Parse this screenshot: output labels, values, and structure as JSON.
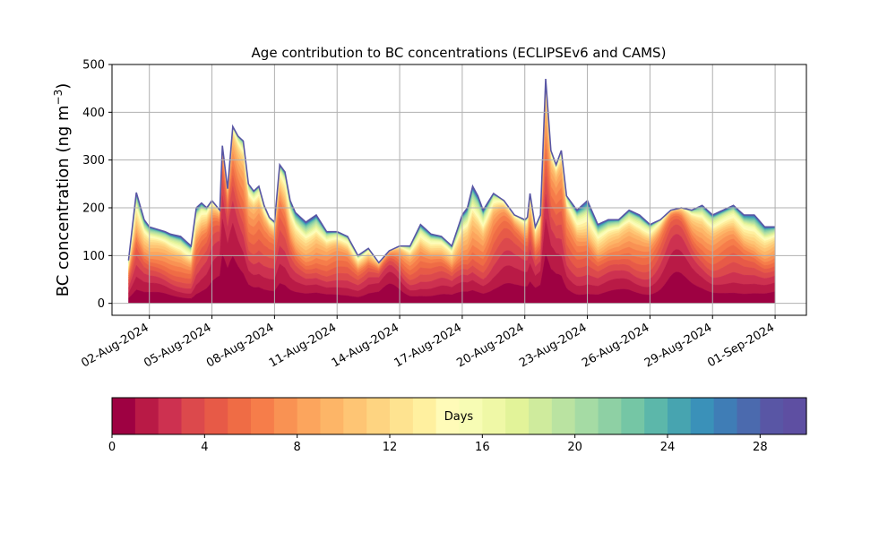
{
  "chart_data": {
    "type": "area",
    "stacked": true,
    "title": "Age contribution to BC concentrations (ECLIPSEv6 and CAMS)",
    "ylabel_main": "BC concentration (ng m",
    "ylabel_sup": "−3",
    "ylabel_end": ")",
    "ylim": [
      -25,
      500
    ],
    "yticks": [
      0,
      100,
      200,
      300,
      400,
      500
    ],
    "xlim": [
      "2024-07-31T05:00",
      "2024-09-02T12:00"
    ],
    "xticks": [
      "02-Aug-2024",
      "05-Aug-2024",
      "08-Aug-2024",
      "11-Aug-2024",
      "14-Aug-2024",
      "17-Aug-2024",
      "20-Aug-2024",
      "23-Aug-2024",
      "26-Aug-2024",
      "29-Aug-2024",
      "01-Sep-2024"
    ],
    "xtick_dates": [
      "2024-08-02",
      "2024-08-05",
      "2024-08-08",
      "2024-08-11",
      "2024-08-14",
      "2024-08-17",
      "2024-08-20",
      "2024-08-23",
      "2024-08-26",
      "2024-08-29",
      "2024-09-01"
    ],
    "grid": true,
    "series_name": "age (days)",
    "age_classes": 30,
    "total": {
      "x": [
        "2024-08-01",
        "2024-08-01T09:00",
        "2024-08-01T18:00",
        "2024-08-02",
        "2024-08-02T09:00",
        "2024-08-02T18:00",
        "2024-08-03",
        "2024-08-03T12:00",
        "2024-08-04",
        "2024-08-04T06:00",
        "2024-08-04T12:00",
        "2024-08-04T18:00",
        "2024-08-05",
        "2024-08-05T09:00",
        "2024-08-05T12:00",
        "2024-08-05T18:00",
        "2024-08-06",
        "2024-08-06T06:00",
        "2024-08-06T12:00",
        "2024-08-06T18:00",
        "2024-08-07",
        "2024-08-07T06:00",
        "2024-08-07T12:00",
        "2024-08-07T18:00",
        "2024-08-08",
        "2024-08-08T06:00",
        "2024-08-08T12:00",
        "2024-08-08T18:00",
        "2024-08-09",
        "2024-08-09T12:00",
        "2024-08-10",
        "2024-08-10T12:00",
        "2024-08-11",
        "2024-08-11T12:00",
        "2024-08-12",
        "2024-08-12T12:00",
        "2024-08-13",
        "2024-08-13T12:00",
        "2024-08-14",
        "2024-08-14T12:00",
        "2024-08-15",
        "2024-08-15T12:00",
        "2024-08-16",
        "2024-08-16T12:00",
        "2024-08-17",
        "2024-08-17T06:00",
        "2024-08-17T12:00",
        "2024-08-17T18:00",
        "2024-08-18",
        "2024-08-18T12:00",
        "2024-08-19",
        "2024-08-19T12:00",
        "2024-08-20",
        "2024-08-20T03:00",
        "2024-08-20T06:00",
        "2024-08-20T12:00",
        "2024-08-20T18:00",
        "2024-08-21",
        "2024-08-21T06:00",
        "2024-08-21T12:00",
        "2024-08-21T18:00",
        "2024-08-22",
        "2024-08-22T12:00",
        "2024-08-23",
        "2024-08-23T12:00",
        "2024-08-24",
        "2024-08-24T12:00",
        "2024-08-25",
        "2024-08-25T12:00",
        "2024-08-26",
        "2024-08-26T12:00",
        "2024-08-27",
        "2024-08-27T12:00",
        "2024-08-28",
        "2024-08-28T12:00",
        "2024-08-29",
        "2024-08-29T12:00",
        "2024-08-30",
        "2024-08-30T12:00",
        "2024-08-31",
        "2024-08-31T12:00",
        "2024-09-01"
      ],
      "y": [
        90,
        232,
        175,
        160,
        155,
        150,
        145,
        140,
        120,
        200,
        210,
        200,
        215,
        195,
        330,
        240,
        370,
        350,
        340,
        250,
        235,
        245,
        205,
        180,
        170,
        290,
        275,
        215,
        190,
        170,
        185,
        150,
        150,
        140,
        100,
        115,
        85,
        110,
        120,
        120,
        165,
        145,
        140,
        120,
        185,
        200,
        245,
        225,
        195,
        230,
        215,
        185,
        175,
        180,
        230,
        160,
        185,
        470,
        320,
        290,
        320,
        225,
        195,
        215,
        165,
        175,
        175,
        195,
        185,
        165,
        175,
        195,
        200,
        195,
        205,
        185,
        195,
        205,
        185,
        185,
        160,
        160
      ]
    },
    "colorbar": {
      "label": "Days",
      "ticks": [
        0,
        4,
        8,
        12,
        16,
        20,
        24,
        28
      ],
      "min": 0,
      "max": 30,
      "colors": [
        "#9e0142",
        "#b91a46",
        "#cd3150",
        "#dc494c",
        "#e75a47",
        "#ef6c45",
        "#f67d4a",
        "#f99253",
        "#fca55d",
        "#fdb567",
        "#fec574",
        "#fed481",
        "#fee390",
        "#fff09f",
        "#fffbb8",
        "#f7fcb4",
        "#eff8a6",
        "#e2f399",
        "#cfeb9d",
        "#bae3a1",
        "#a5dba4",
        "#8ed0a4",
        "#75c6a5",
        "#5cb7aa",
        "#47a4b0",
        "#3a91b9",
        "#3f7db6",
        "#4b6aae",
        "#5956a5",
        "#5e4fa2"
      ]
    }
  }
}
